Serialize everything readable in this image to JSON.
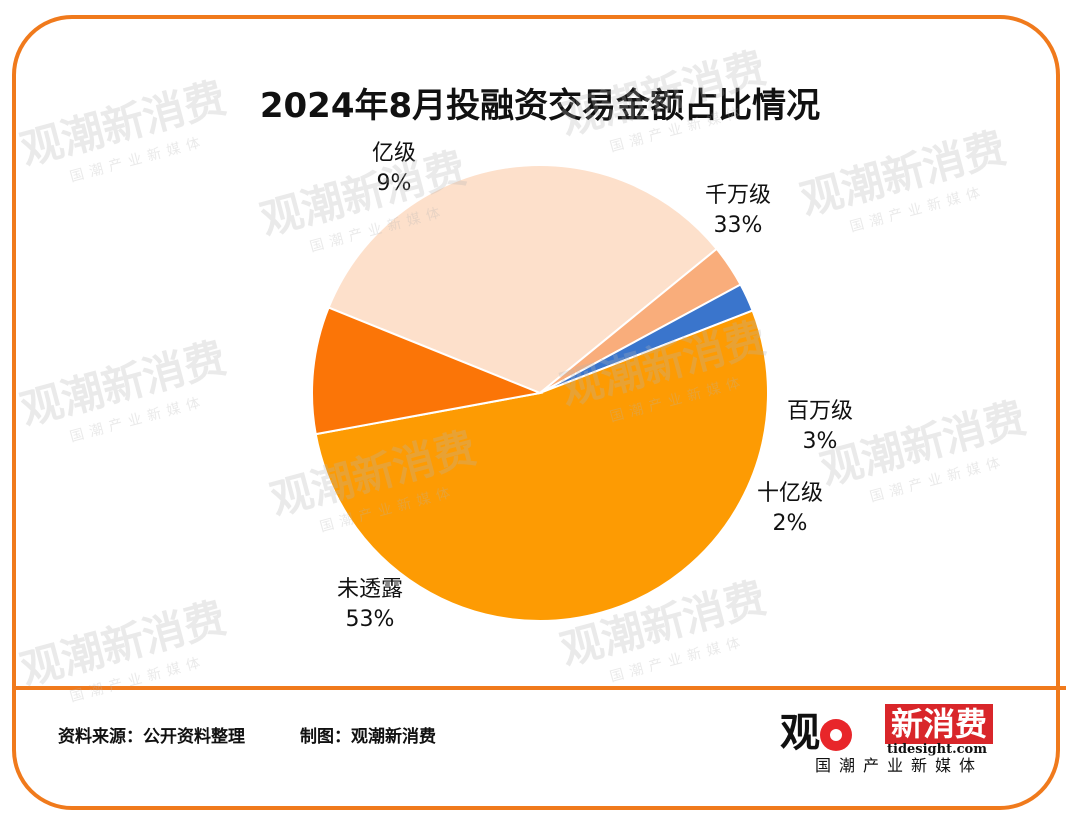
{
  "chart_data": {
    "type": "pie",
    "title": "2024年8月投融资交易金额占比情况",
    "slices": [
      {
        "label": "千万级",
        "value": 33,
        "display": "33%",
        "color": "#fde0cb"
      },
      {
        "label": "百万级",
        "value": 3,
        "display": "3%",
        "color": "#f9ad7b"
      },
      {
        "label": "十亿级",
        "value": 2,
        "display": "2%",
        "color": "#3a75cc"
      },
      {
        "label": "未透露",
        "value": 53,
        "display": "53%",
        "color": "#fd9b03"
      },
      {
        "label": "亿级",
        "value": 9,
        "display": "9%",
        "color": "#fb7507"
      }
    ]
  },
  "footer": {
    "source": "资料来源：公开资料整理",
    "made_by": "制图：观潮新消费"
  },
  "brand": {
    "name_left": "观",
    "name_right": "新消费",
    "url": "tidesight.com",
    "tagline": "国潮产业新媒体"
  },
  "watermark": {
    "text": "观潮新消费",
    "sub": "国潮产业新媒体"
  }
}
